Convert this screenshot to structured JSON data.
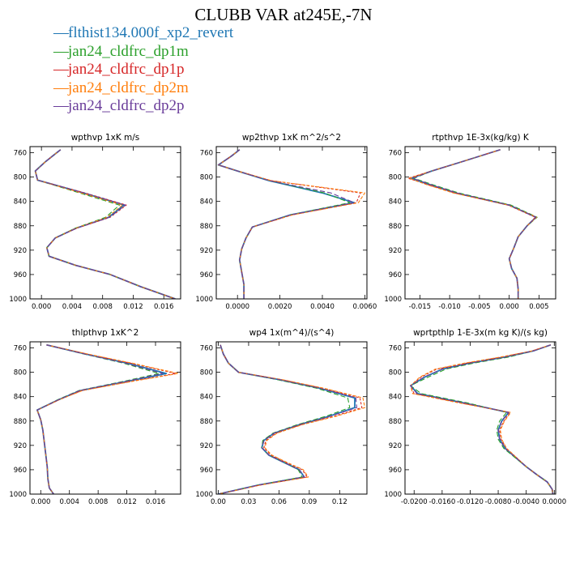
{
  "title": "CLUBB VAR at245E,-7N",
  "colors": {
    "blue": "#1f77b4",
    "green": "#2ca02c",
    "red": "#d62728",
    "orange": "#ff7f0e",
    "purple": "#6a3d9a"
  },
  "legend": [
    {
      "name": "flthist134.000f_xp2_revert",
      "color": "#1f77b4"
    },
    {
      "name": "jan24_cldfrc_dp1m",
      "color": "#2ca02c"
    },
    {
      "name": "jan24_cldfrc_dp1p",
      "color": "#d62728"
    },
    {
      "name": "jan24_cldfrc_dp2m",
      "color": "#ff7f0e"
    },
    {
      "name": "jan24_cldfrc_dp2p",
      "color": "#6a3d9a"
    }
  ],
  "chart_data": [
    {
      "type": "line",
      "title": "wpthvp  1xK m/s",
      "ylim": [
        1000,
        750
      ],
      "yticks": [
        760,
        800,
        840,
        880,
        920,
        960,
        1000
      ],
      "xlim": [
        -0.0015,
        0.0182
      ],
      "xticks": [
        0.0,
        0.004,
        0.008,
        0.012,
        0.016
      ],
      "xtick_labels": [
        "0.000",
        "0.004",
        "0.008",
        "0.012",
        "0.016"
      ],
      "y": [
        755,
        762,
        775,
        790,
        805,
        826,
        846,
        866,
        884,
        900,
        916,
        930,
        945,
        960,
        980,
        1000
      ],
      "series": [
        {
          "name": "flthist134.000f_xp2_revert",
          "x": [
            0.0025,
            0.0018,
            0.0005,
            -0.0008,
            -0.0005,
            0.0055,
            0.0108,
            0.0088,
            0.0045,
            0.0018,
            0.0007,
            0.001,
            0.0045,
            0.009,
            0.013,
            0.0175
          ]
        },
        {
          "name": "jan24_cldfrc_dp1m",
          "x": [
            0.0025,
            0.0018,
            0.0005,
            -0.0008,
            -0.0005,
            0.005,
            0.0102,
            0.0084,
            0.0044,
            0.0018,
            0.0007,
            0.001,
            0.0045,
            0.009,
            0.013,
            0.0175
          ]
        },
        {
          "name": "jan24_cldfrc_dp1p",
          "x": [
            0.0025,
            0.0018,
            0.0005,
            -0.0008,
            -0.0005,
            0.0057,
            0.0111,
            0.009,
            0.0046,
            0.0018,
            0.0007,
            0.001,
            0.0045,
            0.009,
            0.013,
            0.0175
          ]
        },
        {
          "name": "jan24_cldfrc_dp2m",
          "x": [
            0.0025,
            0.0018,
            0.0005,
            -0.0008,
            -0.0005,
            0.0052,
            0.0106,
            0.0086,
            0.0045,
            0.0018,
            0.0007,
            0.001,
            0.0045,
            0.009,
            0.013,
            0.0175
          ]
        },
        {
          "name": "jan24_cldfrc_dp2p",
          "x": [
            0.0025,
            0.0018,
            0.0005,
            -0.0008,
            -0.0005,
            0.0056,
            0.011,
            0.0089,
            0.0046,
            0.0018,
            0.0007,
            0.001,
            0.0045,
            0.009,
            0.013,
            0.0175
          ]
        }
      ]
    },
    {
      "type": "line",
      "title": "wp2thvp  1xK m^2/s^2",
      "ylim": [
        1000,
        750
      ],
      "yticks": [
        760,
        800,
        840,
        880,
        920,
        960,
        1000
      ],
      "xlim": [
        -0.001,
        0.0061
      ],
      "xticks": [
        0.0,
        0.002,
        0.004,
        0.006
      ],
      "xtick_labels": [
        "0.0000",
        "0.0020",
        "0.0040",
        "0.0060"
      ],
      "y": [
        755,
        766,
        780,
        790,
        806,
        826,
        842,
        862,
        882,
        900,
        918,
        936,
        956,
        976,
        1000
      ],
      "series": [
        {
          "name": "flthist134.000f_xp2_revert",
          "x": [
            0.0001,
            -0.0003,
            -0.0009,
            0.0,
            0.0015,
            0.004,
            0.0055,
            0.0025,
            0.0007,
            0.0004,
            0.0002,
            0.0001,
            0.0002,
            0.0003,
            0.0003
          ]
        },
        {
          "name": "jan24_cldfrc_dp1m",
          "x": [
            0.0001,
            -0.0003,
            -0.0009,
            0.0,
            0.0015,
            0.0041,
            0.0053,
            0.0025,
            0.0007,
            0.0004,
            0.0002,
            0.0001,
            0.0002,
            0.0003,
            0.0003
          ]
        },
        {
          "name": "jan24_cldfrc_dp1p",
          "x": [
            0.0001,
            -0.0003,
            -0.0009,
            0.0,
            0.0016,
            0.0058,
            0.0056,
            0.0026,
            0.0007,
            0.0004,
            0.0002,
            0.0001,
            0.0002,
            0.0003,
            0.0003
          ]
        },
        {
          "name": "jan24_cldfrc_dp2m",
          "x": [
            0.0001,
            -0.0003,
            -0.0009,
            0.0,
            0.0016,
            0.006,
            0.0057,
            0.0026,
            0.0007,
            0.0004,
            0.0002,
            0.0001,
            0.0002,
            0.0003,
            0.0003
          ]
        },
        {
          "name": "jan24_cldfrc_dp2p",
          "x": [
            0.0001,
            -0.0003,
            -0.0009,
            0.0,
            0.0015,
            0.0044,
            0.0055,
            0.0025,
            0.0007,
            0.0004,
            0.0002,
            0.0001,
            0.0002,
            0.0003,
            0.0003
          ]
        }
      ]
    },
    {
      "type": "line",
      "title": "rtpthvp  1E-3x(kg/kg) K",
      "ylim": [
        1000,
        750
      ],
      "yticks": [
        760,
        800,
        840,
        880,
        920,
        960,
        1000
      ],
      "xlim": [
        -0.0175,
        0.0078
      ],
      "xticks": [
        -0.015,
        -0.01,
        -0.005,
        0.0,
        0.005
      ],
      "xtick_labels": [
        "-0.015",
        "-0.010",
        "-0.005",
        "0.000",
        "0.005"
      ],
      "y": [
        755,
        775,
        790,
        802,
        812,
        826,
        846,
        866,
        880,
        898,
        916,
        934,
        950,
        966,
        984,
        1000
      ],
      "series": [
        {
          "name": "flthist134.000f_xp2_revert",
          "x": [
            -0.0015,
            -0.008,
            -0.013,
            -0.0165,
            -0.0135,
            -0.009,
            0.0,
            0.0045,
            0.003,
            0.0015,
            0.0008,
            0.0,
            0.0004,
            0.0013,
            0.0015,
            0.0015
          ]
        },
        {
          "name": "jan24_cldfrc_dp1m",
          "x": [
            -0.0015,
            -0.008,
            -0.013,
            -0.016,
            -0.013,
            -0.0085,
            0.0003,
            0.0047,
            0.003,
            0.0015,
            0.0008,
            0.0,
            0.0004,
            0.0013,
            0.0015,
            0.0015
          ]
        },
        {
          "name": "jan24_cldfrc_dp1p",
          "x": [
            -0.0015,
            -0.008,
            -0.013,
            -0.017,
            -0.0138,
            -0.0092,
            -0.0002,
            0.0044,
            0.003,
            0.0015,
            0.0008,
            0.0,
            0.0004,
            0.0013,
            0.0015,
            0.0015
          ]
        },
        {
          "name": "jan24_cldfrc_dp2m",
          "x": [
            -0.0015,
            -0.008,
            -0.013,
            -0.0168,
            -0.014,
            -0.0094,
            -0.0001,
            0.0046,
            0.003,
            0.0015,
            0.0008,
            0.0,
            0.0004,
            0.0013,
            0.0015,
            0.0015
          ]
        },
        {
          "name": "jan24_cldfrc_dp2p",
          "x": [
            -0.0015,
            -0.008,
            -0.013,
            -0.0162,
            -0.0133,
            -0.0088,
            0.0,
            0.0045,
            0.003,
            0.0015,
            0.0008,
            0.0,
            0.0004,
            0.0013,
            0.0015,
            0.0015
          ]
        }
      ]
    },
    {
      "type": "line",
      "title": "thlpthvp  1xK^2",
      "ylim": [
        1000,
        750
      ],
      "yticks": [
        760,
        800,
        840,
        880,
        920,
        960,
        1000
      ],
      "xlim": [
        -0.0015,
        0.0195
      ],
      "xticks": [
        0.0,
        0.004,
        0.008,
        0.012,
        0.016
      ],
      "xtick_labels": [
        "0.000",
        "0.004",
        "0.008",
        "0.012",
        "0.016"
      ],
      "y": [
        755,
        770,
        785,
        802,
        815,
        830,
        845,
        862,
        878,
        895,
        915,
        935,
        955,
        975,
        990,
        1000
      ],
      "series": [
        {
          "name": "flthist134.000f_xp2_revert",
          "x": [
            0.0008,
            0.0062,
            0.012,
            0.0175,
            0.012,
            0.0055,
            0.0025,
            -0.0005,
            0.0,
            0.0003,
            0.0005,
            0.0007,
            0.0009,
            0.001,
            0.0012,
            0.0018
          ]
        },
        {
          "name": "jan24_cldfrc_dp1m",
          "x": [
            0.0008,
            0.006,
            0.0115,
            0.0165,
            0.0115,
            0.0053,
            0.0024,
            -0.0005,
            0.0,
            0.0003,
            0.0005,
            0.0007,
            0.0009,
            0.001,
            0.0012,
            0.0018
          ]
        },
        {
          "name": "jan24_cldfrc_dp1p",
          "x": [
            0.0008,
            0.0064,
            0.0125,
            0.0188,
            0.0125,
            0.0057,
            0.0026,
            -0.0005,
            0.0,
            0.0003,
            0.0005,
            0.0007,
            0.0009,
            0.001,
            0.0012,
            0.0018
          ]
        },
        {
          "name": "jan24_cldfrc_dp2m",
          "x": [
            0.0008,
            0.0065,
            0.0127,
            0.0192,
            0.0127,
            0.0058,
            0.0026,
            -0.0005,
            0.0,
            0.0003,
            0.0005,
            0.0007,
            0.0009,
            0.001,
            0.0012,
            0.0018
          ]
        },
        {
          "name": "jan24_cldfrc_dp2p",
          "x": [
            0.0008,
            0.0061,
            0.0118,
            0.017,
            0.0118,
            0.0054,
            0.0025,
            -0.0005,
            0.0,
            0.0003,
            0.0005,
            0.0007,
            0.0009,
            0.001,
            0.0012,
            0.0018
          ]
        }
      ]
    },
    {
      "type": "line",
      "title": "wp4  1x(m^4)/(s^4)",
      "ylim": [
        1000,
        750
      ],
      "yticks": [
        760,
        800,
        840,
        880,
        920,
        960,
        1000
      ],
      "xlim": [
        -0.002,
        0.147
      ],
      "xticks": [
        0.0,
        0.03,
        0.06,
        0.09,
        0.12
      ],
      "xtick_labels": [
        "0.00",
        "0.03",
        "0.06",
        "0.09",
        "0.12"
      ],
      "y": [
        755,
        770,
        785,
        800,
        812,
        826,
        842,
        858,
        872,
        886,
        900,
        912,
        924,
        936,
        948,
        960,
        972,
        985,
        1000
      ],
      "series": [
        {
          "name": "flthist134.000f_xp2_revert",
          "x": [
            0.002,
            0.005,
            0.01,
            0.02,
            0.06,
            0.1,
            0.135,
            0.135,
            0.11,
            0.08,
            0.055,
            0.045,
            0.043,
            0.05,
            0.065,
            0.08,
            0.085,
            0.04,
            0.0
          ]
        },
        {
          "name": "jan24_cldfrc_dp1m",
          "x": [
            0.002,
            0.005,
            0.01,
            0.02,
            0.058,
            0.097,
            0.128,
            0.13,
            0.107,
            0.078,
            0.054,
            0.044,
            0.043,
            0.05,
            0.065,
            0.079,
            0.083,
            0.04,
            0.0
          ]
        },
        {
          "name": "jan24_cldfrc_dp1p",
          "x": [
            0.002,
            0.005,
            0.01,
            0.02,
            0.062,
            0.103,
            0.14,
            0.142,
            0.115,
            0.082,
            0.057,
            0.047,
            0.045,
            0.052,
            0.067,
            0.083,
            0.088,
            0.042,
            0.0
          ]
        },
        {
          "name": "jan24_cldfrc_dp2m",
          "x": [
            0.002,
            0.005,
            0.01,
            0.02,
            0.063,
            0.104,
            0.143,
            0.145,
            0.117,
            0.083,
            0.058,
            0.048,
            0.046,
            0.053,
            0.068,
            0.084,
            0.089,
            0.042,
            0.0
          ]
        },
        {
          "name": "jan24_cldfrc_dp2p",
          "x": [
            0.002,
            0.005,
            0.01,
            0.02,
            0.06,
            0.1,
            0.136,
            0.137,
            0.111,
            0.08,
            0.055,
            0.045,
            0.043,
            0.05,
            0.065,
            0.08,
            0.085,
            0.04,
            0.0
          ]
        }
      ]
    },
    {
      "type": "line",
      "title": "wprtpthlp  1-E-3x(m kg K)/(s kg)",
      "ylim": [
        1000,
        750
      ],
      "yticks": [
        760,
        800,
        840,
        880,
        920,
        960,
        1000
      ],
      "xlim": [
        -0.0213,
        0.0002
      ],
      "xticks": [
        -0.02,
        -0.016,
        -0.012,
        -0.008,
        -0.004,
        0.0
      ],
      "xtick_labels": [
        "-0.0200",
        "-0.0160",
        "-0.0120",
        "-0.0080",
        "-0.0040",
        "0.0000"
      ],
      "y": [
        755,
        765,
        775,
        785,
        795,
        808,
        822,
        835,
        850,
        866,
        880,
        895,
        910,
        925,
        940,
        955,
        968,
        980,
        992,
        1000
      ],
      "series": [
        {
          "name": "flthist134.000f_xp2_revert",
          "x": [
            -0.0005,
            -0.003,
            -0.007,
            -0.012,
            -0.016,
            -0.0185,
            -0.0205,
            -0.0195,
            -0.013,
            -0.0065,
            -0.0075,
            -0.008,
            -0.0078,
            -0.007,
            -0.0055,
            -0.004,
            -0.0025,
            -0.001,
            -0.0003,
            -0.0002
          ]
        },
        {
          "name": "jan24_cldfrc_dp1m",
          "x": [
            -0.0005,
            -0.003,
            -0.0065,
            -0.0115,
            -0.0155,
            -0.018,
            -0.0205,
            -0.019,
            -0.0125,
            -0.0068,
            -0.0078,
            -0.0082,
            -0.008,
            -0.0072,
            -0.0056,
            -0.004,
            -0.0025,
            -0.001,
            -0.0003,
            -0.0002
          ]
        },
        {
          "name": "jan24_cldfrc_dp1p",
          "x": [
            -0.0005,
            -0.0032,
            -0.0075,
            -0.0125,
            -0.0168,
            -0.019,
            -0.0205,
            -0.02,
            -0.0135,
            -0.0063,
            -0.0072,
            -0.0078,
            -0.0076,
            -0.0068,
            -0.0054,
            -0.004,
            -0.0025,
            -0.001,
            -0.0003,
            -0.0002
          ]
        },
        {
          "name": "jan24_cldfrc_dp2m",
          "x": [
            -0.0005,
            -0.0032,
            -0.0077,
            -0.0128,
            -0.017,
            -0.0192,
            -0.0205,
            -0.0202,
            -0.0137,
            -0.0062,
            -0.0071,
            -0.0077,
            -0.0075,
            -0.0068,
            -0.0054,
            -0.004,
            -0.0025,
            -0.001,
            -0.0003,
            -0.0002
          ]
        },
        {
          "name": "jan24_cldfrc_dp2p",
          "x": [
            -0.0005,
            -0.003,
            -0.007,
            -0.012,
            -0.016,
            -0.0186,
            -0.0205,
            -0.0196,
            -0.013,
            -0.0065,
            -0.0075,
            -0.008,
            -0.0078,
            -0.007,
            -0.0055,
            -0.004,
            -0.0025,
            -0.001,
            -0.0003,
            -0.0002
          ]
        }
      ]
    }
  ]
}
